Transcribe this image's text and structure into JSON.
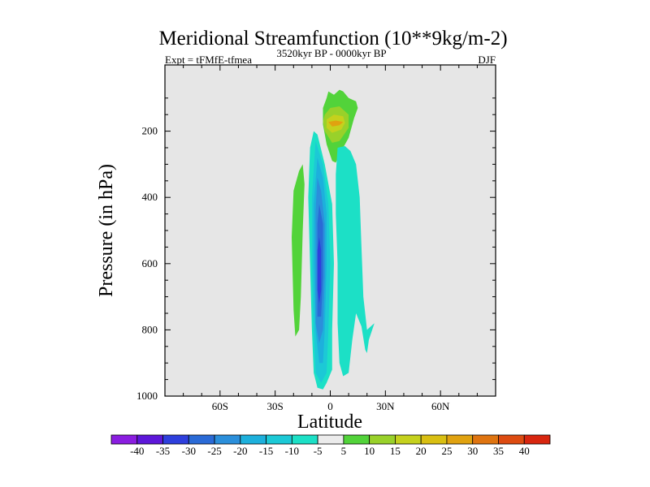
{
  "chart_data": {
    "type": "contour",
    "title": "Meridional Streamfunction (10**9kg/m-2)",
    "left_label": "Expt = tFMfE-tfmea",
    "center_label": "3520kyr BP - 0000kyr BP",
    "right_label": "DJF",
    "xlabel": "Latitude",
    "ylabel": "Pressure (in hPa)",
    "xlim": [
      -90,
      90
    ],
    "ylim": [
      1000,
      0
    ],
    "x_ticks": [
      {
        "value": -60,
        "label": "60S"
      },
      {
        "value": -30,
        "label": "30S"
      },
      {
        "value": 0,
        "label": "0"
      },
      {
        "value": 30,
        "label": "30N"
      },
      {
        "value": 60,
        "label": "60N"
      }
    ],
    "y_ticks": [
      {
        "value": 200,
        "label": "200"
      },
      {
        "value": 400,
        "label": "400"
      },
      {
        "value": 600,
        "label": "600"
      },
      {
        "value": 800,
        "label": "800"
      },
      {
        "value": 1000,
        "label": "1000"
      }
    ],
    "background_color": "#e6e6e6",
    "contour_levels": [
      -40,
      -35,
      -30,
      -25,
      -20,
      -15,
      -10,
      -5,
      5,
      10,
      15,
      20,
      25,
      30,
      35,
      40
    ],
    "colorbar_colors": [
      "#8a1de0",
      "#5d17d9",
      "#2e3fdd",
      "#2a6ad6",
      "#2b8fdb",
      "#1db0dc",
      "#1cc9d6",
      "#1ce0c6",
      "#ebebeb",
      "#52d33a",
      "#99d12a",
      "#c5d11d",
      "#d9bf12",
      "#e0a210",
      "#df7410",
      "#dd4b11",
      "#d8260f"
    ],
    "regions": [
      {
        "name": "positive-cell-nh-upper",
        "level": 5,
        "color": "#52d33a",
        "outline": [
          [
            7,
            80
          ],
          [
            10,
            100
          ],
          [
            14,
            110
          ],
          [
            15,
            130
          ],
          [
            13,
            160
          ],
          [
            10,
            220
          ],
          [
            5,
            270
          ],
          [
            3,
            295
          ],
          [
            1,
            290
          ],
          [
            -2,
            240
          ],
          [
            -4,
            180
          ],
          [
            -4,
            130
          ],
          [
            -2,
            100
          ],
          [
            -1,
            80
          ],
          [
            2,
            90
          ],
          [
            5,
            75
          ]
        ]
      },
      {
        "name": "positive-cell-nh-upper-10",
        "level": 10,
        "color": "#99d12a",
        "outline": [
          [
            -3,
            150
          ],
          [
            0,
            130
          ],
          [
            5,
            125
          ],
          [
            10,
            150
          ],
          [
            10,
            190
          ],
          [
            5,
            230
          ],
          [
            1,
            235
          ],
          [
            -3,
            200
          ],
          [
            -4,
            170
          ]
        ]
      },
      {
        "name": "positive-cell-nh-upper-15",
        "level": 15,
        "color": "#c5d11d",
        "outline": [
          [
            -2,
            165
          ],
          [
            2,
            150
          ],
          [
            7,
            155
          ],
          [
            8,
            175
          ],
          [
            6,
            195
          ],
          [
            1,
            205
          ],
          [
            -2,
            190
          ]
        ]
      },
      {
        "name": "positive-cell-nh-upper-20",
        "level": 20,
        "color": "#e0a210",
        "outline": [
          [
            -1,
            172
          ],
          [
            3,
            168
          ],
          [
            7,
            172
          ],
          [
            5,
            182
          ],
          [
            1,
            186
          ]
        ]
      },
      {
        "name": "positive-band-sh",
        "level": 5,
        "color": "#52d33a",
        "outline": [
          [
            -17,
            320
          ],
          [
            -15,
            300
          ],
          [
            -14,
            360
          ],
          [
            -15,
            500
          ],
          [
            -16,
            700
          ],
          [
            -17,
            800
          ],
          [
            -19,
            820
          ],
          [
            -20,
            740
          ],
          [
            -21,
            520
          ],
          [
            -20,
            380
          ]
        ]
      },
      {
        "name": "negative-cell-main",
        "level": -5,
        "color": "#1ce0c6",
        "outline": [
          [
            -9,
            200
          ],
          [
            -7,
            210
          ],
          [
            -3,
            300
          ],
          [
            1,
            420
          ],
          [
            2,
            600
          ],
          [
            1,
            800
          ],
          [
            1,
            920
          ],
          [
            -2,
            960
          ],
          [
            -4,
            980
          ],
          [
            -7,
            975
          ],
          [
            -9,
            930
          ],
          [
            -10,
            800
          ],
          [
            -11,
            600
          ],
          [
            -12,
            400
          ],
          [
            -11,
            250
          ]
        ]
      },
      {
        "name": "negative-cell-nh",
        "level": -5,
        "color": "#1ce0c6",
        "outline": [
          [
            4,
            250
          ],
          [
            8,
            245
          ],
          [
            11,
            260
          ],
          [
            14,
            300
          ],
          [
            16,
            400
          ],
          [
            17,
            550
          ],
          [
            18,
            700
          ],
          [
            20,
            800
          ],
          [
            22,
            790
          ],
          [
            24,
            780
          ],
          [
            21,
            830
          ],
          [
            20,
            870
          ],
          [
            19,
            860
          ],
          [
            17,
            790
          ],
          [
            14,
            750
          ],
          [
            12,
            830
          ],
          [
            10,
            930
          ],
          [
            7,
            940
          ],
          [
            5,
            900
          ],
          [
            4,
            780
          ],
          [
            4,
            600
          ],
          [
            3,
            450
          ],
          [
            3,
            330
          ]
        ]
      },
      {
        "name": "negative-cell-main-10",
        "level": -10,
        "color": "#1cc9d6",
        "outline": [
          [
            -8,
            230
          ],
          [
            -4,
            300
          ],
          [
            -1,
            420
          ],
          [
            0,
            600
          ],
          [
            -1,
            800
          ],
          [
            -2,
            930
          ],
          [
            -5,
            960
          ],
          [
            -8,
            930
          ],
          [
            -9,
            800
          ],
          [
            -10,
            600
          ],
          [
            -10,
            400
          ]
        ]
      },
      {
        "name": "negative-cell-main-15",
        "level": -15,
        "color": "#1db0dc",
        "outline": [
          [
            -7,
            280
          ],
          [
            -4,
            340
          ],
          [
            -2,
            450
          ],
          [
            -2,
            600
          ],
          [
            -3,
            800
          ],
          [
            -4,
            900
          ],
          [
            -6,
            900
          ],
          [
            -8,
            800
          ],
          [
            -9,
            600
          ],
          [
            -9,
            420
          ]
        ]
      },
      {
        "name": "negative-cell-main-20",
        "level": -20,
        "color": "#2b8fdb",
        "outline": [
          [
            -7,
            340
          ],
          [
            -5,
            380
          ],
          [
            -3,
            480
          ],
          [
            -3,
            640
          ],
          [
            -4,
            800
          ],
          [
            -6,
            840
          ],
          [
            -8,
            780
          ],
          [
            -8,
            600
          ],
          [
            -8,
            440
          ]
        ]
      },
      {
        "name": "negative-cell-main-25",
        "level": -25,
        "color": "#2a6ad6",
        "outline": [
          [
            -6,
            420
          ],
          [
            -4,
            480
          ],
          [
            -4,
            640
          ],
          [
            -5,
            760
          ],
          [
            -7,
            760
          ],
          [
            -7,
            600
          ],
          [
            -7,
            480
          ]
        ]
      },
      {
        "name": "negative-cell-main-30",
        "level": -30,
        "color": "#2e3fdd",
        "outline": [
          [
            -6,
            520
          ],
          [
            -5,
            560
          ],
          [
            -5,
            680
          ],
          [
            -6,
            720
          ],
          [
            -7,
            680
          ],
          [
            -7,
            560
          ]
        ]
      }
    ]
  }
}
